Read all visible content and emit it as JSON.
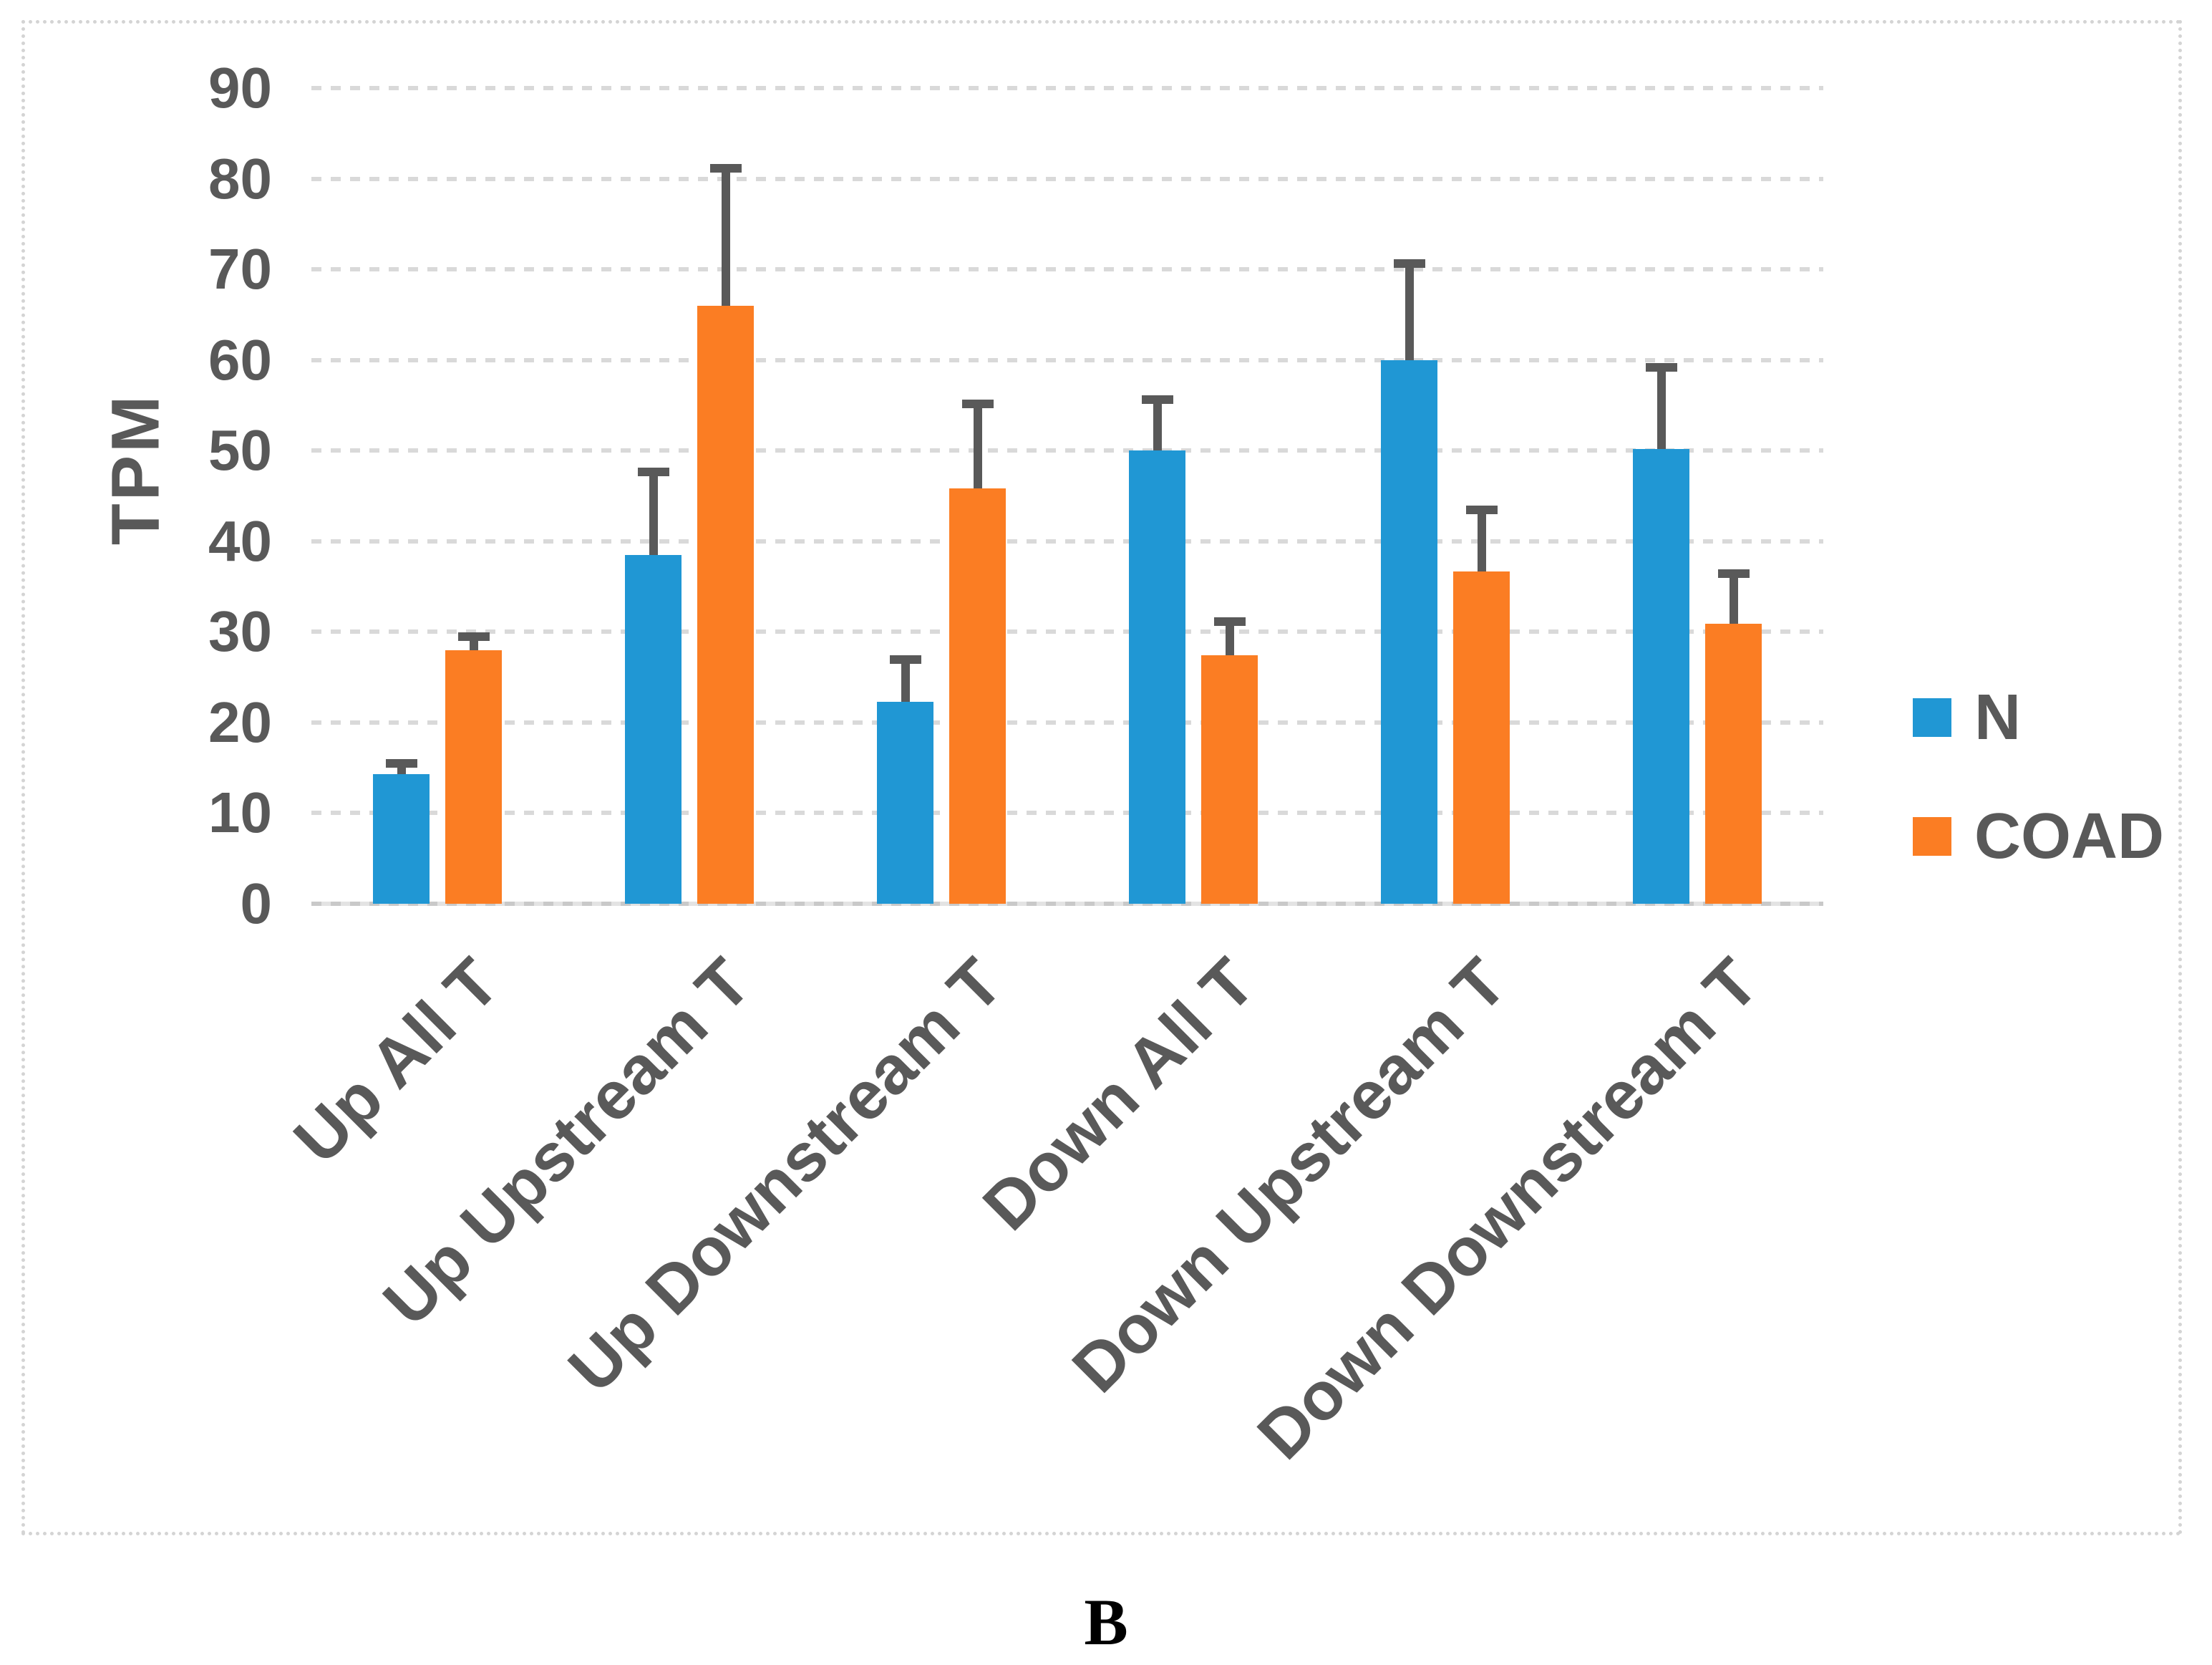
{
  "figure": {
    "panel_label": "B"
  },
  "chart_data": {
    "type": "bar",
    "title": "",
    "ylabel": "TPM",
    "xlabel": "",
    "ylim": [
      0,
      90
    ],
    "yticks": [
      90,
      80,
      70,
      60,
      50,
      40,
      30,
      20,
      10,
      0
    ],
    "grid": true,
    "legend_position": "right",
    "categories": [
      "Up All T",
      "Up Upstream T",
      "Up Downstream T",
      "Down All T",
      "Down Upstream T",
      "Down Downstream T"
    ],
    "series": [
      {
        "name": "N",
        "color": "#2097d4",
        "values": [
          14.3,
          38.5,
          22.3,
          50.0,
          60.0,
          50.2
        ],
        "error_plus": [
          1.0,
          9.0,
          4.5,
          5.5,
          10.5,
          8.8
        ]
      },
      {
        "name": "COAD",
        "color": "#fb7d23",
        "values": [
          28.0,
          66.0,
          45.8,
          27.4,
          36.7,
          30.9
        ],
        "error_plus": [
          1.3,
          15.0,
          9.2,
          3.6,
          6.6,
          5.4
        ]
      }
    ],
    "error_bar_color": "#595959",
    "text_color": "#595959",
    "gridline_color": "#d9d9d9"
  }
}
